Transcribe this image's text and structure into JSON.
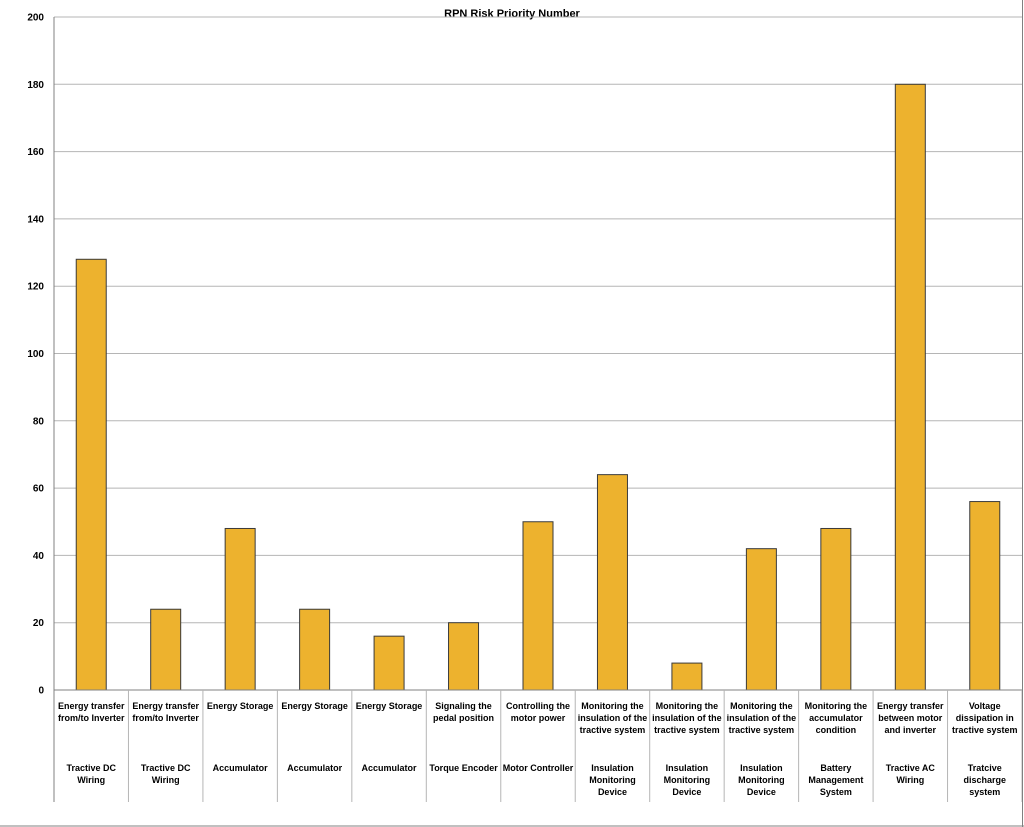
{
  "chart_data": {
    "type": "bar",
    "title": "RPN Risk Priority Number",
    "xlabel": "",
    "ylabel": "",
    "ylim": [
      0,
      200
    ],
    "yticks": [
      0,
      20,
      40,
      60,
      80,
      100,
      120,
      140,
      160,
      180,
      200
    ],
    "grid": true,
    "categories": [
      {
        "function": "Energy transfer from/to Inverter",
        "component": "Tractive DC Wiring"
      },
      {
        "function": "Energy transfer from/to Inverter",
        "component": "Tractive DC Wiring"
      },
      {
        "function": "Energy Storage",
        "component": "Accumulator"
      },
      {
        "function": "Energy Storage",
        "component": "Accumulator"
      },
      {
        "function": "Energy Storage",
        "component": "Accumulator"
      },
      {
        "function": "Signaling the pedal position",
        "component": "Torque Encoder"
      },
      {
        "function": "Controlling the motor power",
        "component": "Motor Controller"
      },
      {
        "function": "Monitoring the insulation of the tractive system",
        "component": "Insulation Monitoring Device"
      },
      {
        "function": "Monitoring the insulation of the tractive system",
        "component": "Insulation Monitoring Device"
      },
      {
        "function": "Monitoring the insulation of the tractive system",
        "component": "Insulation Monitoring Device"
      },
      {
        "function": "Monitoring the accumulator condition",
        "component": "Battery Management System"
      },
      {
        "function": "Energy transfer between motor and inverter",
        "component": "Tractive AC Wiring"
      },
      {
        "function": "Voltage dissipation in tractive system",
        "component": "Tratcive discharge system"
      }
    ],
    "values": [
      128,
      24,
      48,
      24,
      16,
      20,
      50,
      64,
      8,
      42,
      48,
      180,
      56
    ],
    "colors": {
      "bar": "#EDB22E",
      "bar_border": "#3a3a3a",
      "grid": "#b5b5b5",
      "axis": "#808080"
    }
  }
}
